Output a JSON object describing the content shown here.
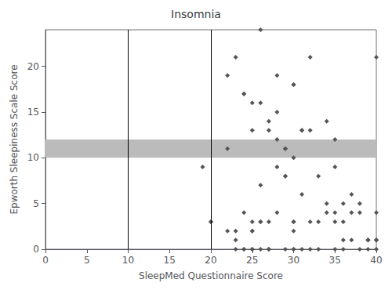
{
  "chart_data": {
    "type": "scatter",
    "title": "Insomnia",
    "xlabel": "SleepMed Questionnaire Score",
    "ylabel": "Epworth Sleepiness Scale Score",
    "xlim": [
      0,
      40
    ],
    "ylim": [
      0,
      24
    ],
    "xticks": [
      0,
      5,
      10,
      15,
      20,
      25,
      30,
      35,
      40
    ],
    "yticks": [
      0,
      5,
      10,
      15,
      20
    ],
    "grid": false,
    "marker": "diamond",
    "color": "#555555",
    "bands": [
      {
        "y": [
          10,
          12
        ],
        "color": "#bbbbbb"
      }
    ],
    "vlines": [
      {
        "x": 10,
        "color": "#000000"
      },
      {
        "x": 20,
        "color": "#000000"
      }
    ],
    "x": [
      19,
      20,
      20,
      22,
      22,
      23,
      23,
      23,
      24,
      24,
      24,
      25,
      25,
      25,
      25,
      26,
      26,
      26,
      27,
      27,
      27,
      28,
      28,
      28,
      28,
      29,
      29,
      29,
      30,
      30,
      30,
      30,
      30,
      31,
      31,
      31,
      32,
      32,
      32,
      33,
      33,
      34,
      34,
      35,
      35,
      35,
      35,
      36,
      36,
      36,
      37,
      37,
      38,
      38,
      39,
      39,
      39,
      40,
      40,
      40,
      40,
      40,
      25,
      28,
      27,
      29,
      30,
      29,
      30,
      22,
      23,
      24,
      25,
      26,
      24,
      26,
      27,
      30,
      31,
      32,
      33,
      34,
      35,
      36,
      37,
      38,
      39,
      40,
      25,
      26
    ],
    "values": [
      9,
      3,
      3,
      19,
      2,
      21,
      1,
      2,
      17,
      17,
      0,
      16,
      13,
      2,
      2,
      24,
      16,
      7,
      13,
      14,
      3,
      12,
      19,
      15,
      4,
      11,
      11,
      8,
      18,
      18,
      10,
      3,
      0,
      13,
      13,
      6,
      21,
      13,
      0,
      8,
      3,
      14,
      5,
      12,
      9,
      4,
      0,
      5,
      3,
      1,
      6,
      1,
      5,
      4,
      1,
      1,
      0,
      21,
      4,
      1,
      1,
      0,
      0,
      9,
      0,
      0,
      0,
      8,
      3,
      11,
      0,
      0,
      3,
      3,
      4,
      3,
      0,
      2,
      0,
      3,
      0,
      4,
      3,
      0,
      4,
      0,
      1,
      1,
      0,
      0
    ]
  }
}
